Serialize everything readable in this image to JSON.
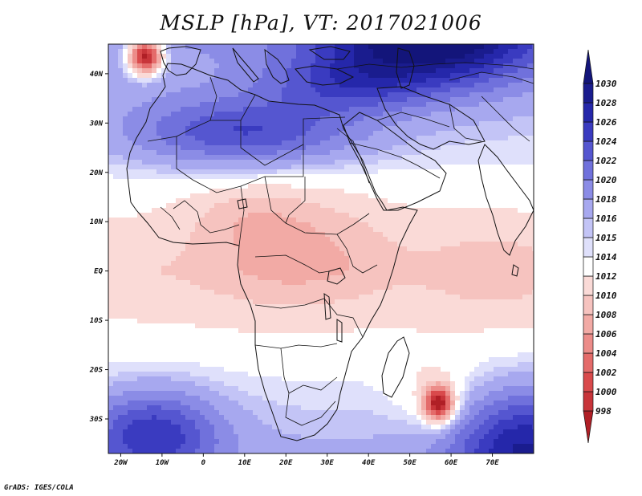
{
  "footer": "GrADS: IGES/COLA",
  "chart_data": {
    "type": "heatmap",
    "title": "MSLP [hPa], VT: 2017021006",
    "variable": "MSLP",
    "units": "hPa",
    "valid_time": "2017021006",
    "lon_range": [
      -23,
      80
    ],
    "lat_range": [
      -37,
      46
    ],
    "x_ticks": [
      {
        "value": -20,
        "label": "20W"
      },
      {
        "value": -10,
        "label": "10W"
      },
      {
        "value": 0,
        "label": "0"
      },
      {
        "value": 10,
        "label": "10E"
      },
      {
        "value": 20,
        "label": "20E"
      },
      {
        "value": 30,
        "label": "30E"
      },
      {
        "value": 40,
        "label": "40E"
      },
      {
        "value": 50,
        "label": "50E"
      },
      {
        "value": 60,
        "label": "60E"
      },
      {
        "value": 70,
        "label": "70E"
      }
    ],
    "y_ticks": [
      {
        "value": 40,
        "label": "40N"
      },
      {
        "value": 30,
        "label": "30N"
      },
      {
        "value": 20,
        "label": "20N"
      },
      {
        "value": 10,
        "label": "10N"
      },
      {
        "value": 0,
        "label": "EQ"
      },
      {
        "value": -10,
        "label": "10S"
      },
      {
        "value": -20,
        "label": "20S"
      },
      {
        "value": -30,
        "label": "30S"
      }
    ],
    "colorbar": {
      "levels": [
        998,
        1000,
        1002,
        1004,
        1006,
        1008,
        1010,
        1012,
        1014,
        1015,
        1016,
        1018,
        1020,
        1022,
        1024,
        1026,
        1028,
        1030
      ],
      "colors": [
        "#b01f26",
        "#c8353a",
        "#d94a4c",
        "#e46b6a",
        "#ec8c89",
        "#f2aaa5",
        "#f6c3bf",
        "#fadad7",
        "#ffffff",
        "#dfe0fb",
        "#c3c4f6",
        "#a7a8ef",
        "#8b8ce6",
        "#7071dc",
        "#5556d0",
        "#3a3bc0",
        "#2527aa",
        "#1a1c8e",
        "#13157a"
      ]
    },
    "features": [
      {
        "name": "Azores/North Atlantic low core",
        "lon": -14,
        "lat": 43,
        "value": 998
      },
      {
        "name": "Tropical cyclone low east of Madagascar",
        "lon": 57,
        "lat": -27,
        "value": 998
      },
      {
        "name": "Central Africa trough",
        "lon": 22,
        "lat": 5,
        "value": 1009
      },
      {
        "name": "Asian high",
        "lon": 55,
        "lat": 42,
        "value": 1030
      },
      {
        "name": "South Atlantic high",
        "lon": -10,
        "lat": -32,
        "value": 1022
      },
      {
        "name": "South Indian Ocean high",
        "lon": 78,
        "lat": -35,
        "value": 1024
      }
    ]
  }
}
